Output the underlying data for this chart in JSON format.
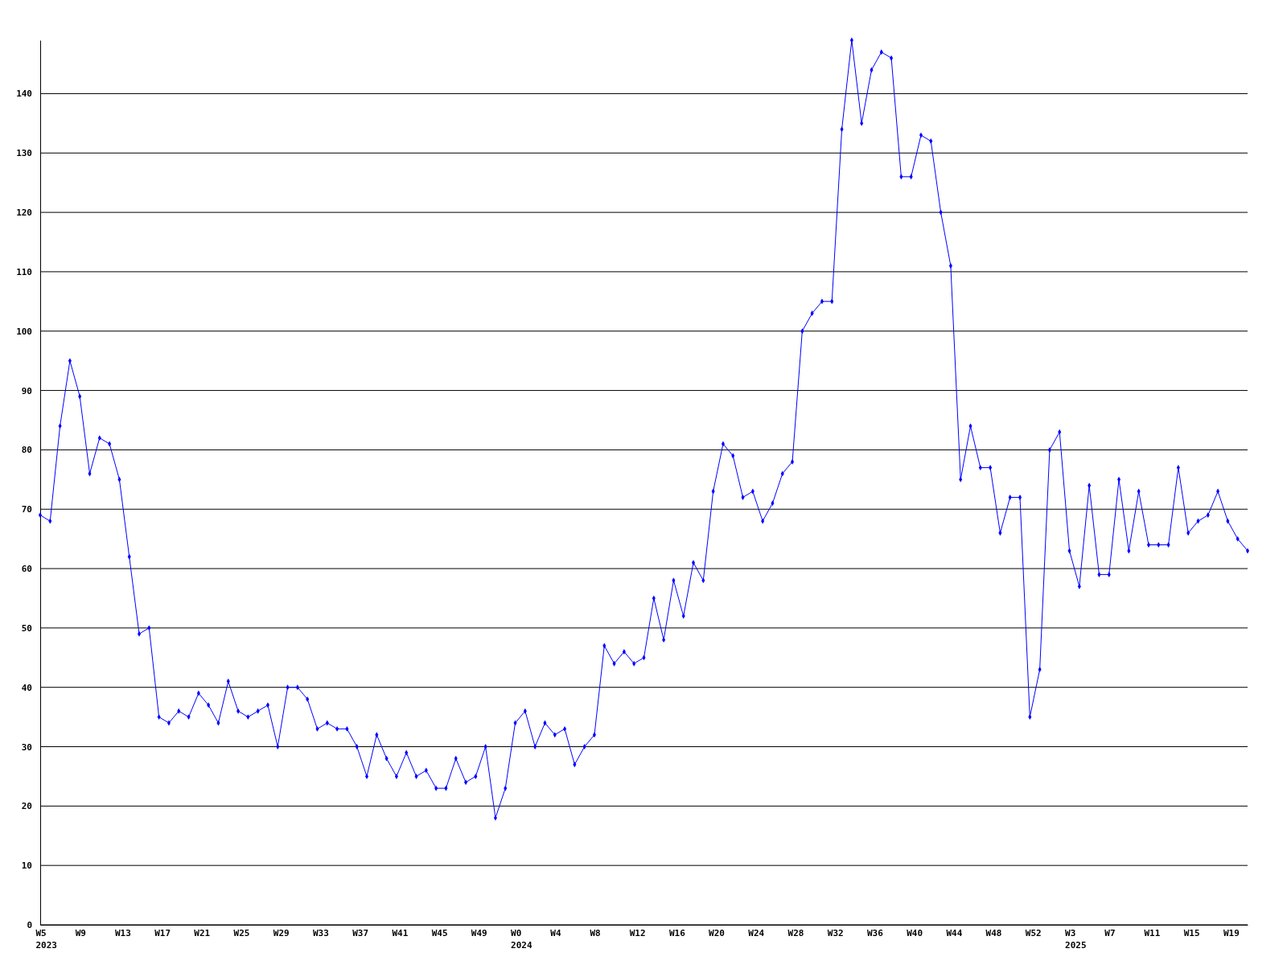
{
  "chart_data": {
    "type": "line",
    "categories": [
      "W5\n2023",
      null,
      null,
      null,
      "W9",
      null,
      null,
      null,
      "W13",
      null,
      null,
      null,
      "W17",
      null,
      null,
      null,
      "W21",
      null,
      null,
      null,
      "W25",
      null,
      null,
      null,
      "W29",
      null,
      null,
      null,
      "W33",
      null,
      null,
      null,
      "W37",
      null,
      null,
      null,
      "W41",
      null,
      null,
      null,
      "W45",
      null,
      null,
      null,
      "W49",
      null,
      null,
      null,
      "W0\n2024",
      null,
      null,
      null,
      "W4",
      null,
      null,
      null,
      "W8",
      null,
      null,
      null,
      "W12",
      null,
      null,
      null,
      "W16",
      null,
      null,
      null,
      "W20",
      null,
      null,
      null,
      "W24",
      null,
      null,
      null,
      "W28",
      null,
      null,
      null,
      "W32",
      null,
      null,
      null,
      "W36",
      null,
      null,
      null,
      "W40",
      null,
      null,
      null,
      "W44",
      null,
      null,
      null,
      "W48",
      null,
      null,
      null,
      "W52",
      null,
      null,
      null,
      "W3\n2025",
      null,
      null,
      null,
      "W7",
      null,
      null,
      null,
      "W11",
      null,
      null,
      null,
      "W15",
      null,
      null,
      null,
      "W19",
      null,
      null
    ],
    "series": [
      {
        "color": "#0000ff",
        "values": [
          69,
          68,
          84,
          95,
          89,
          76,
          82,
          81,
          75,
          62,
          49,
          50,
          35,
          34,
          36,
          35,
          39,
          37,
          34,
          41,
          36,
          35,
          36,
          37,
          30,
          40,
          40,
          38,
          33,
          34,
          33,
          33,
          30,
          25,
          32,
          28,
          25,
          29,
          25,
          26,
          23,
          23,
          28,
          24,
          25,
          30,
          18,
          23,
          34,
          36,
          30,
          34,
          32,
          33,
          27,
          30,
          32,
          47,
          44,
          46,
          44,
          45,
          55,
          48,
          58,
          52,
          61,
          58,
          73,
          81,
          79,
          72,
          73,
          68,
          71,
          76,
          78,
          100,
          103,
          105,
          105,
          134,
          149,
          135,
          144,
          147,
          146,
          126,
          126,
          133,
          132,
          120,
          111,
          75,
          84,
          77,
          77,
          66,
          72,
          72,
          35,
          43,
          80,
          83,
          63,
          57,
          74,
          59,
          59,
          75,
          63,
          73,
          64,
          64,
          64,
          77,
          66,
          68,
          69,
          73,
          68,
          65,
          63
        ]
      }
    ],
    "ylim": [
      0,
      149
    ],
    "yticks": [
      0,
      10,
      20,
      30,
      40,
      50,
      60,
      70,
      80,
      90,
      100,
      110,
      120,
      130,
      140
    ],
    "grid": "y",
    "marker": "diamond",
    "line_style": "solid"
  }
}
